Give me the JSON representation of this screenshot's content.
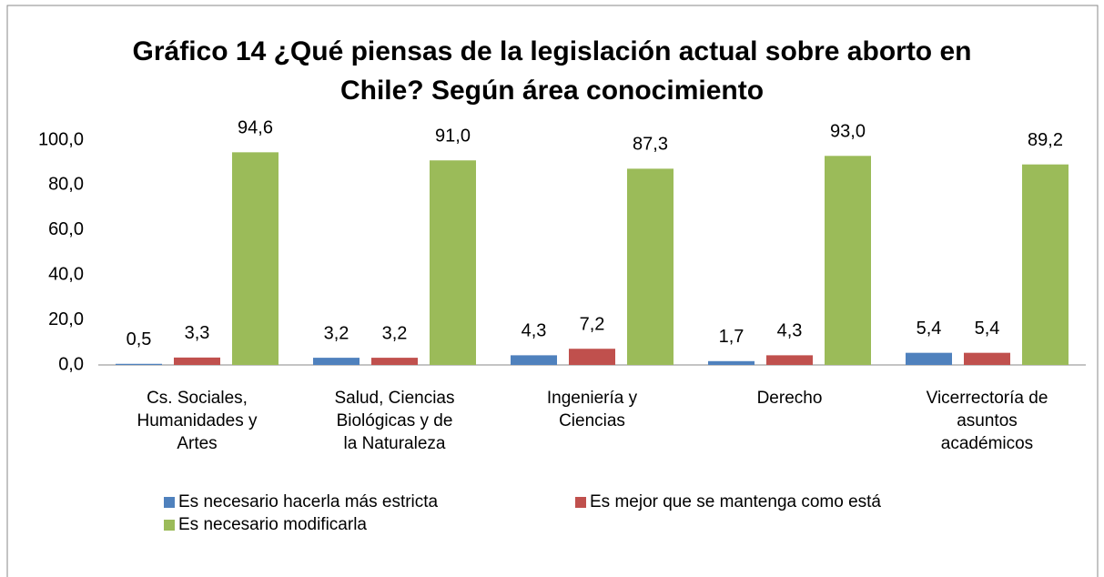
{
  "chart_data": {
    "type": "bar",
    "title": "Gráfico 14 ¿Qué piensas de la legislación actual sobre aborto en Chile? Según área conocimiento",
    "categories": [
      "Cs. Sociales, Humanidades y Artes",
      "Salud, Ciencias Biológicas y de la Naturaleza",
      "Ingeniería y Ciencias",
      "Derecho",
      "Vicerrectoría de asuntos académicos"
    ],
    "series": [
      {
        "name": "Es necesario hacerla más estricta",
        "color": "#4f81bd",
        "values": [
          0.5,
          3.2,
          4.3,
          1.7,
          5.4
        ],
        "value_labels": [
          "0,5",
          "3,2",
          "4,3",
          "1,7",
          "5,4"
        ]
      },
      {
        "name": "Es mejor que se mantenga como está",
        "color": "#c0504d",
        "values": [
          3.3,
          3.2,
          7.2,
          4.3,
          5.4
        ],
        "value_labels": [
          "3,3",
          "3,2",
          "7,2",
          "4,3",
          "5,4"
        ]
      },
      {
        "name": "Es necesario modificarla",
        "color": "#9bbb59",
        "values": [
          94.6,
          91.0,
          87.3,
          93.0,
          89.2
        ],
        "value_labels": [
          "94,6",
          "91,0",
          "87,3",
          "93,0",
          "89,2"
        ]
      }
    ],
    "ylim": [
      0,
      100
    ],
    "yticks": [
      {
        "value": 0,
        "label": "0,0"
      },
      {
        "value": 20,
        "label": "20,0"
      },
      {
        "value": 40,
        "label": "40,0"
      },
      {
        "value": 60,
        "label": "60,0"
      },
      {
        "value": 80,
        "label": "80,0"
      },
      {
        "value": 100,
        "label": "100,0"
      }
    ],
    "grid": false
  }
}
